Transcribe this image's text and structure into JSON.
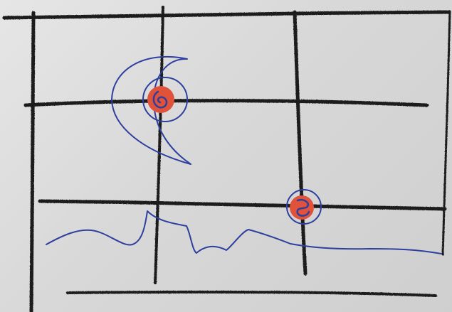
{
  "sketch": {
    "paper_color": "#dcdcdc",
    "grid_line_color": "#1f1f1f",
    "curve_color": "#2e3f9e",
    "marker_fill_color": "#e0523a",
    "marker_ring_color": "#2e3f9e",
    "horizontal_grid_lines": 4,
    "vertical_grid_lines": 4,
    "red_markers": 2
  }
}
